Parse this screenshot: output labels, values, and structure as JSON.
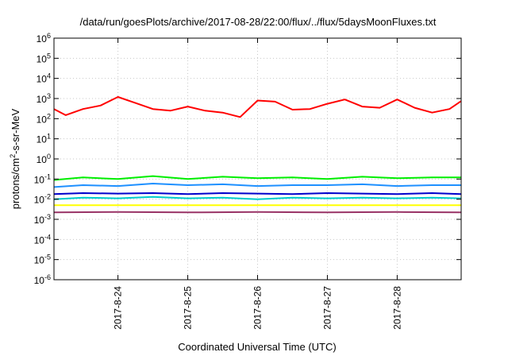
{
  "chart_data": {
    "type": "line",
    "title": "/data/run/goesPlots/archive/2017-08-28/22:00/flux/../flux/5daysMoonFluxes.txt",
    "xlabel": "Coordinated Universal Time (UTC)",
    "ylabel": {
      "prefix": "protons/cm",
      "sup": "2",
      "suffix": "-s-sr-MeV"
    },
    "y_scale": "log",
    "ylim": [
      1e-06,
      1000000.0
    ],
    "xlim": [
      "2017-08-23 02:00",
      "2017-08-28 22:00"
    ],
    "x_tick_dates": [
      "2017-08-24 00:00",
      "2017-08-25 00:00",
      "2017-08-26 00:00",
      "2017-08-27 00:00",
      "2017-08-28 00:00"
    ],
    "x_tick_labels": [
      "2017-8-24",
      "2017-8-25",
      "2017-8-26",
      "2017-8-27",
      "2017-8-28"
    ],
    "y_tick_exponents": [
      -6,
      -5,
      -4,
      -3,
      -2,
      -1,
      0,
      1,
      2,
      3,
      4,
      5,
      6
    ],
    "grid": true,
    "legend": "none",
    "series": [
      {
        "color": "#ff0000",
        "x": [
          "2017-08-23 02:00",
          "2017-08-23 06:00",
          "2017-08-23 12:00",
          "2017-08-23 18:00",
          "2017-08-24 00:00",
          "2017-08-24 06:00",
          "2017-08-24 12:00",
          "2017-08-24 18:00",
          "2017-08-25 00:00",
          "2017-08-25 06:00",
          "2017-08-25 12:00",
          "2017-08-25 18:00",
          "2017-08-26 00:00",
          "2017-08-26 06:00",
          "2017-08-26 12:00",
          "2017-08-26 18:00",
          "2017-08-27 00:00",
          "2017-08-27 06:00",
          "2017-08-27 12:00",
          "2017-08-27 18:00",
          "2017-08-28 00:00",
          "2017-08-28 06:00",
          "2017-08-28 12:00",
          "2017-08-28 18:00",
          "2017-08-28 22:00"
        ],
        "y": [
          300,
          150,
          300,
          450,
          1200,
          600,
          300,
          250,
          400,
          250,
          200,
          120,
          800,
          700,
          280,
          300,
          550,
          900,
          400,
          350,
          900,
          350,
          200,
          300,
          750
        ]
      },
      {
        "color": "#00ee00",
        "x": [
          "2017-08-23 02:00",
          "2017-08-23 12:00",
          "2017-08-24 00:00",
          "2017-08-24 12:00",
          "2017-08-25 00:00",
          "2017-08-25 12:00",
          "2017-08-26 00:00",
          "2017-08-26 12:00",
          "2017-08-27 00:00",
          "2017-08-27 12:00",
          "2017-08-28 00:00",
          "2017-08-28 12:00",
          "2017-08-28 22:00"
        ],
        "y": [
          0.09,
          0.12,
          0.1,
          0.14,
          0.1,
          0.13,
          0.11,
          0.12,
          0.1,
          0.13,
          0.11,
          0.12,
          0.12
        ]
      },
      {
        "color": "#1e90ff",
        "x": [
          "2017-08-23 02:00",
          "2017-08-23 12:00",
          "2017-08-24 00:00",
          "2017-08-24 12:00",
          "2017-08-25 00:00",
          "2017-08-25 12:00",
          "2017-08-26 00:00",
          "2017-08-26 12:00",
          "2017-08-27 00:00",
          "2017-08-27 12:00",
          "2017-08-28 00:00",
          "2017-08-28 12:00",
          "2017-08-28 22:00"
        ],
        "y": [
          0.04,
          0.05,
          0.045,
          0.06,
          0.05,
          0.055,
          0.045,
          0.05,
          0.05,
          0.055,
          0.045,
          0.05,
          0.05
        ]
      },
      {
        "color": "#00cccc",
        "x": [
          "2017-08-23 02:00",
          "2017-08-23 12:00",
          "2017-08-24 00:00",
          "2017-08-24 12:00",
          "2017-08-25 00:00",
          "2017-08-25 12:00",
          "2017-08-26 00:00",
          "2017-08-26 12:00",
          "2017-08-27 00:00",
          "2017-08-27 12:00",
          "2017-08-28 00:00",
          "2017-08-28 12:00",
          "2017-08-28 22:00"
        ],
        "y": [
          0.01,
          0.012,
          0.011,
          0.013,
          0.011,
          0.012,
          0.01,
          0.012,
          0.011,
          0.012,
          0.011,
          0.012,
          0.011
        ]
      },
      {
        "color": "#0000cc",
        "x": [
          "2017-08-23 02:00",
          "2017-08-23 12:00",
          "2017-08-24 00:00",
          "2017-08-24 12:00",
          "2017-08-25 00:00",
          "2017-08-25 12:00",
          "2017-08-26 00:00",
          "2017-08-26 12:00",
          "2017-08-27 00:00",
          "2017-08-27 12:00",
          "2017-08-28 00:00",
          "2017-08-28 12:00",
          "2017-08-28 22:00"
        ],
        "y": [
          0.018,
          0.02,
          0.019,
          0.02,
          0.018,
          0.02,
          0.019,
          0.018,
          0.02,
          0.019,
          0.018,
          0.02,
          0.018
        ]
      },
      {
        "color": "#ffff00",
        "x": [
          "2017-08-23 02:00",
          "2017-08-24 00:00",
          "2017-08-25 00:00",
          "2017-08-26 00:00",
          "2017-08-27 00:00",
          "2017-08-28 00:00",
          "2017-08-28 22:00"
        ],
        "y": [
          0.005,
          0.005,
          0.005,
          0.005,
          0.005,
          0.005,
          0.005
        ]
      },
      {
        "color": "#993366",
        "x": [
          "2017-08-23 02:00",
          "2017-08-24 00:00",
          "2017-08-25 00:00",
          "2017-08-26 00:00",
          "2017-08-27 00:00",
          "2017-08-28 00:00",
          "2017-08-28 22:00"
        ],
        "y": [
          0.0022,
          0.0023,
          0.0022,
          0.0023,
          0.0022,
          0.0023,
          0.0022
        ]
      }
    ]
  }
}
